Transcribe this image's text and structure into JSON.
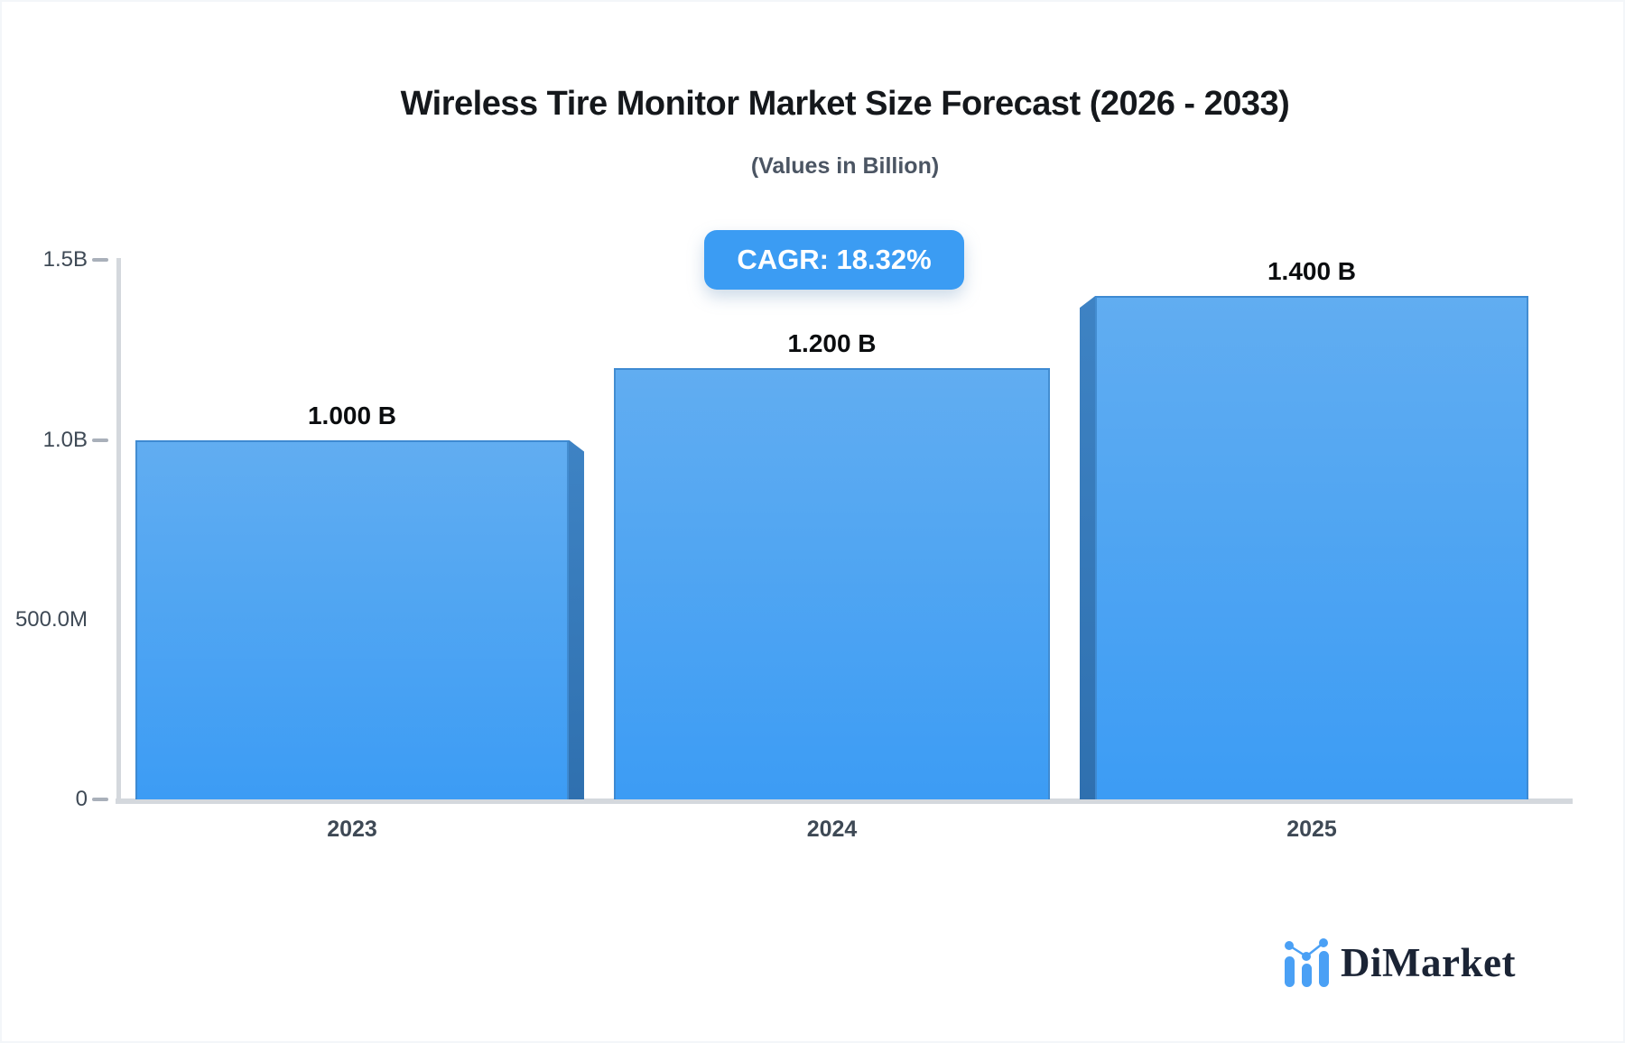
{
  "chart_data": {
    "type": "bar",
    "title": "Wireless Tire Monitor Market Size Forecast (2026 - 2033)",
    "subtitle": "(Values in Billion)",
    "badge": "CAGR: 18.32%",
    "categories": [
      "2023",
      "2024",
      "2025"
    ],
    "values": [
      1.0,
      1.2,
      1.4
    ],
    "value_labels": [
      "1.000 B",
      "1.200 B",
      "1.400 B"
    ],
    "unit": "Billion",
    "grid": "off",
    "legend": "none",
    "y_axis": {
      "range": [
        0,
        1.5
      ],
      "ticks": [
        {
          "label": "1.5B",
          "value": 1.5,
          "dash": true
        },
        {
          "label": "1.0B",
          "value": 1.0,
          "dash": true
        },
        {
          "label": "500.0M",
          "value": 0.5,
          "dash": false
        },
        {
          "label": "0",
          "value": 0,
          "dash": true
        }
      ]
    }
  },
  "branding": {
    "logo_text": "DiMarket",
    "logo_icon": "bar-chart-trend-icon"
  },
  "colors": {
    "bar_top": "#61adf1",
    "bar_bottom": "#3c9cf4",
    "bar_border": "#3e87cb",
    "bar_side_top": "#3e83c4",
    "bar_side_bottom": "#2f70af",
    "badge_bg": "#3b9cf3",
    "badge_text": "#ffffff",
    "title_text": "#15181c",
    "subtitle_text": "#4b5563",
    "axis_text": "#3e4955",
    "axis_line": "#d4d8dd",
    "logo_text": "#1b2435",
    "logo_blue": "#4aa0f5"
  }
}
